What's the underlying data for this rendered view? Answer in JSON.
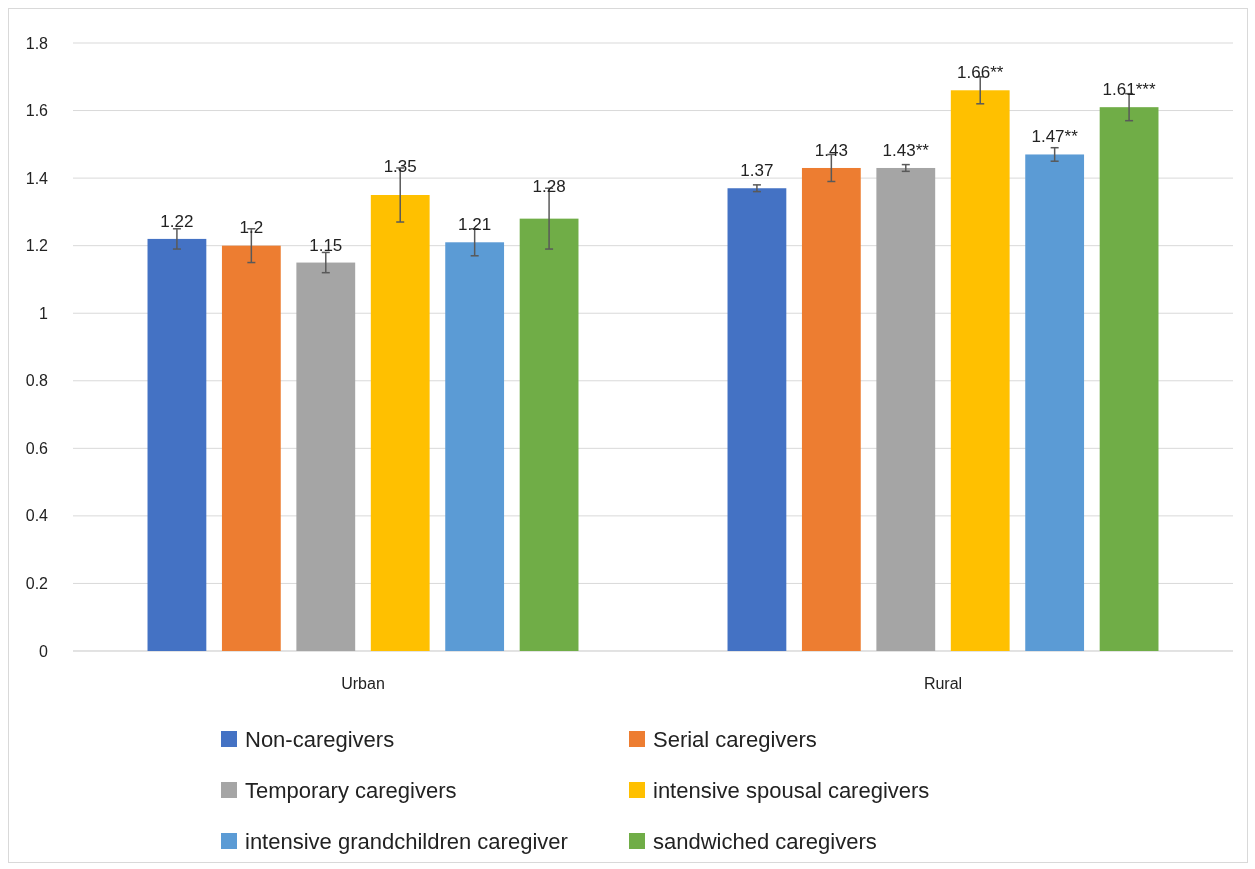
{
  "chart_data": {
    "type": "bar",
    "categories": [
      "Urban",
      "Rural"
    ],
    "series": [
      {
        "name": "Non-caregivers",
        "color": "#4472c4",
        "values": [
          1.22,
          1.37
        ],
        "errors": [
          0.03,
          0.01
        ],
        "value_labels": [
          "1.22",
          "1.37"
        ]
      },
      {
        "name": "Serial caregivers",
        "color": "#ed7d31",
        "values": [
          1.2,
          1.43
        ],
        "errors": [
          0.05,
          0.04
        ],
        "value_labels": [
          "1.2",
          "1.43"
        ]
      },
      {
        "name": "Temporary caregivers",
        "color": "#a5a5a5",
        "values": [
          1.15,
          1.43
        ],
        "errors": [
          0.03,
          0.01
        ],
        "value_labels": [
          "1.15",
          "1.43**"
        ]
      },
      {
        "name": "intensive spousal caregivers",
        "color": "#ffc000",
        "values": [
          1.35,
          1.66
        ],
        "errors": [
          0.08,
          0.04
        ],
        "value_labels": [
          "1.35",
          "1.66**"
        ]
      },
      {
        "name": "intensive grandchildren caregiver",
        "color": "#5b9bd5",
        "values": [
          1.21,
          1.47
        ],
        "errors": [
          0.04,
          0.02
        ],
        "value_labels": [
          "1.21",
          "1.47**"
        ]
      },
      {
        "name": "sandwiched caregivers",
        "color": "#70ad47",
        "values": [
          1.28,
          1.61
        ],
        "errors": [
          0.09,
          0.04
        ],
        "value_labels": [
          "1.28",
          "1.61***"
        ]
      }
    ],
    "ylim": [
      0,
      1.8
    ],
    "yticks": [
      0,
      0.2,
      0.4,
      0.6,
      0.8,
      1,
      1.2,
      1.4,
      1.6,
      1.8
    ],
    "grid": "y",
    "legend": "bottom"
  }
}
